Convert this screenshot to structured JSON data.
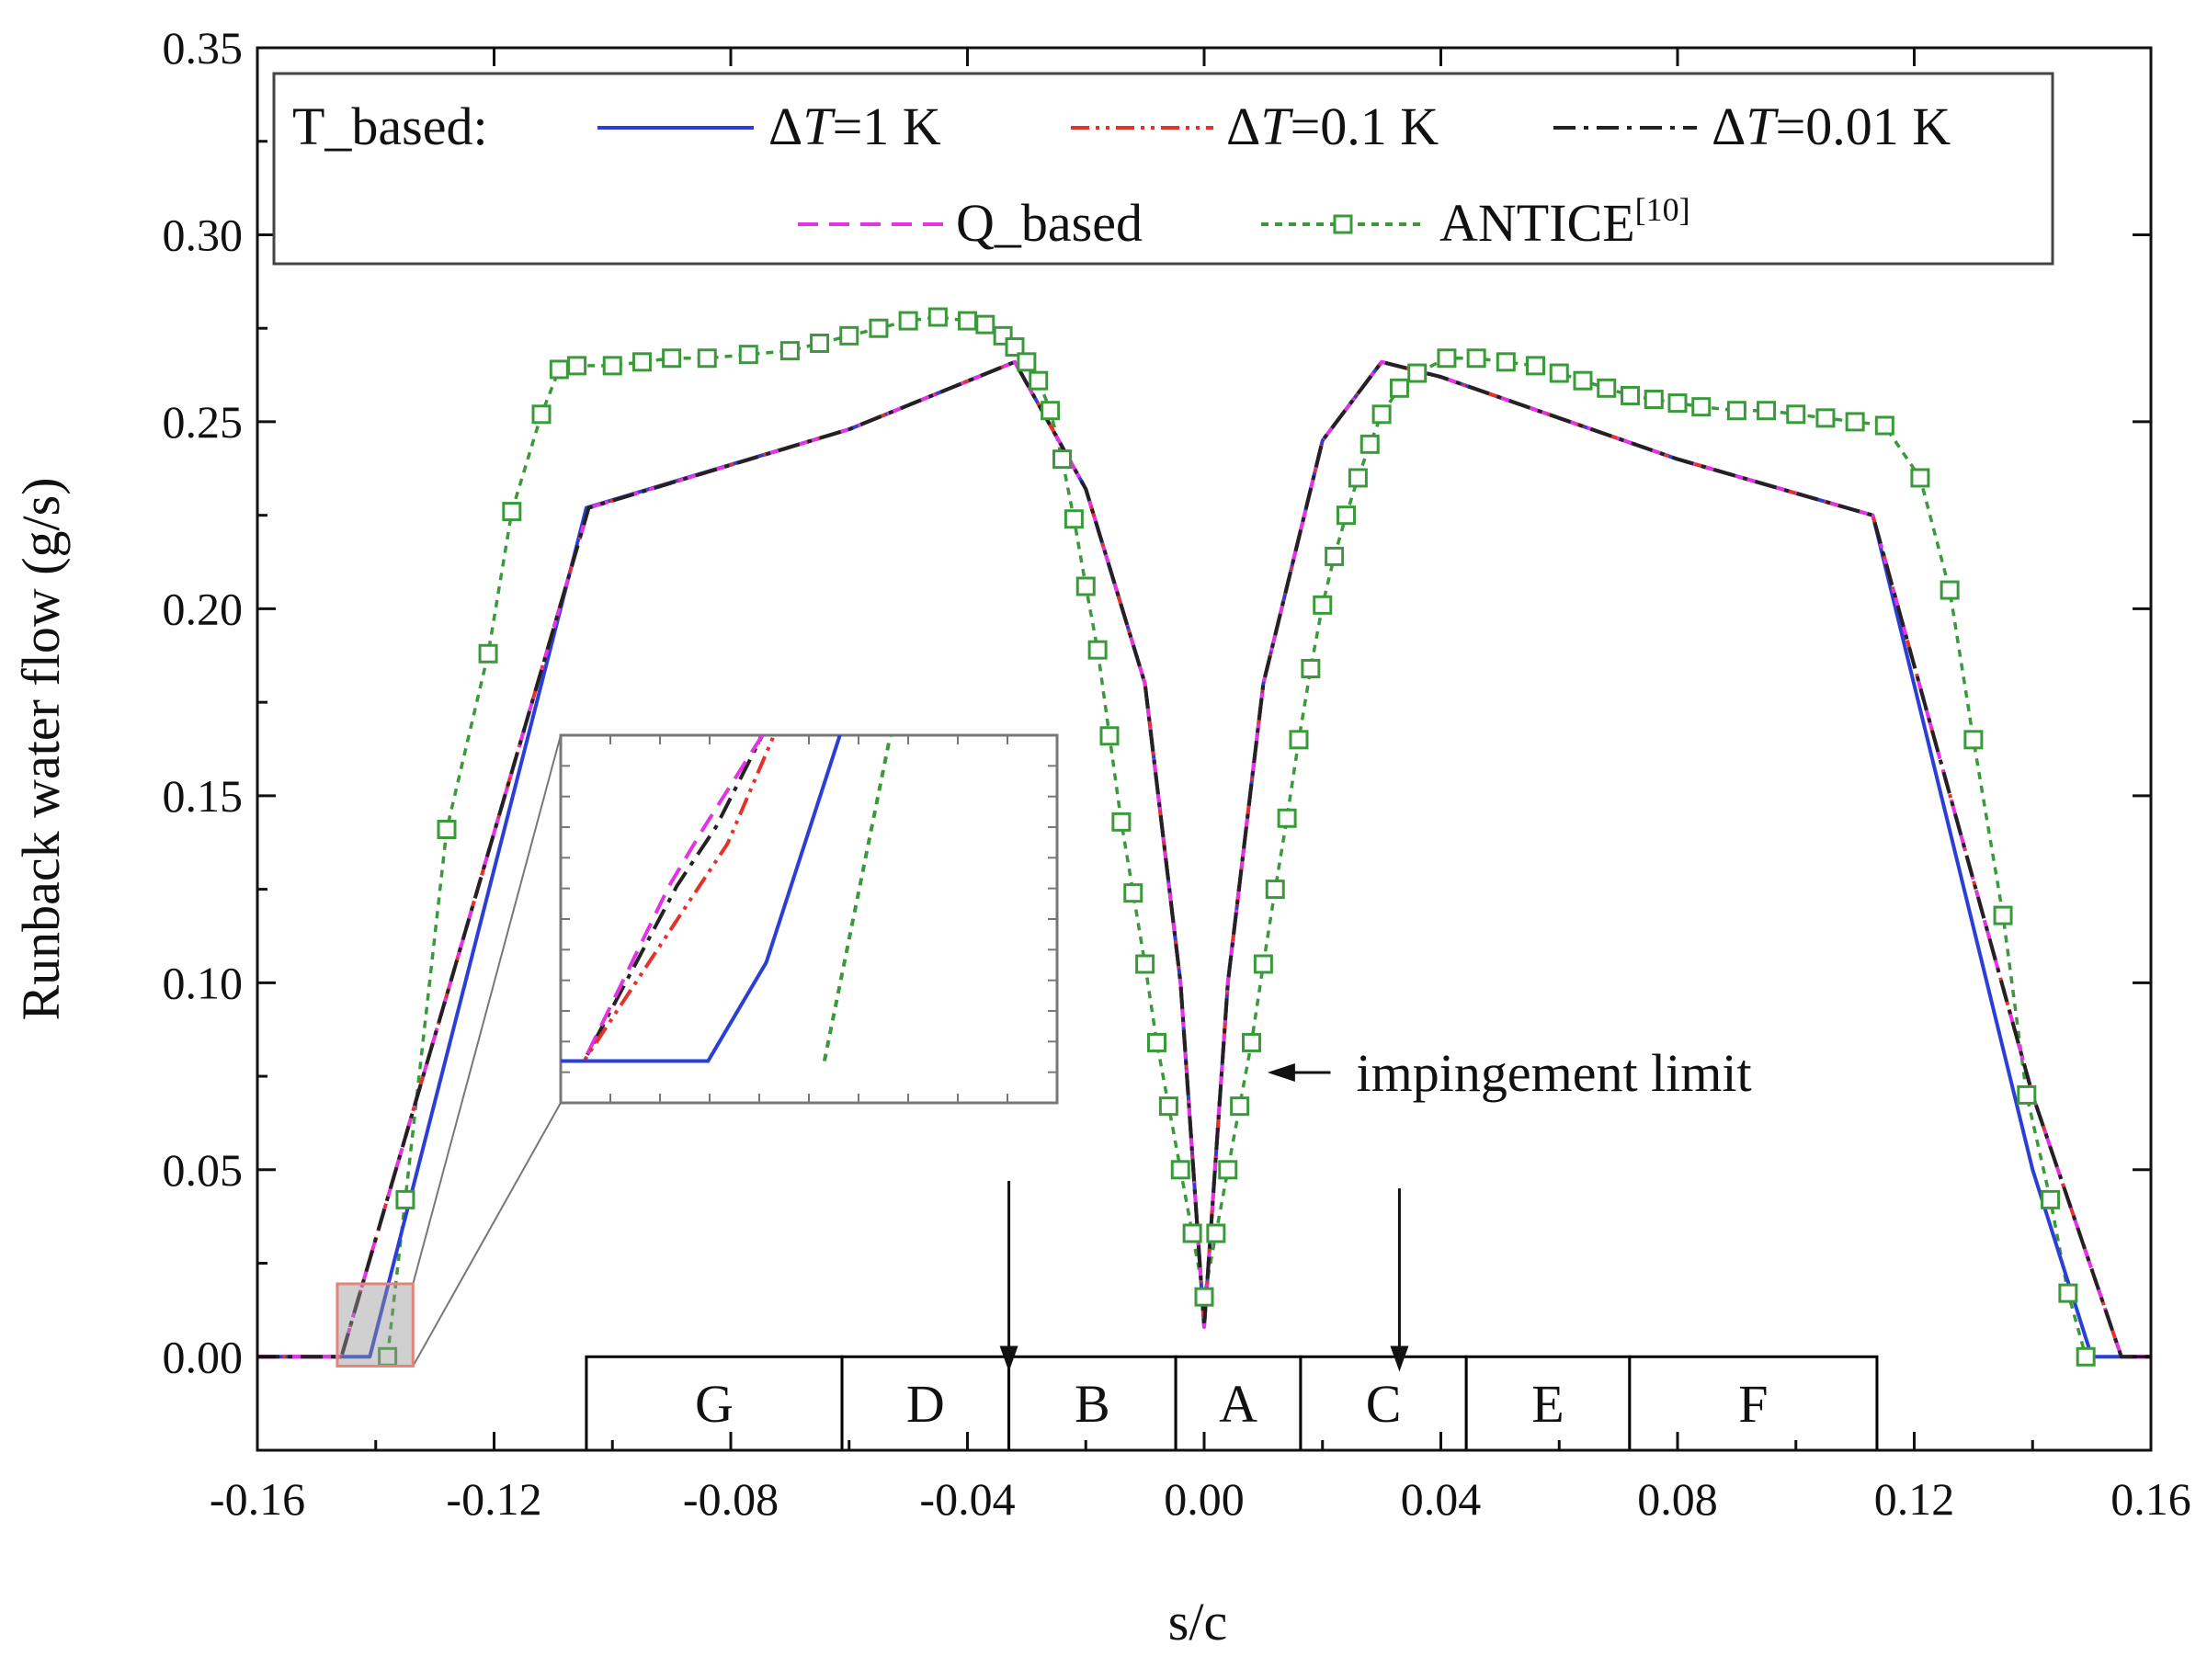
{
  "chart_data": {
    "type": "line",
    "title": "",
    "xlabel": "s/c",
    "ylabel": "Runback water flow (g/s)",
    "xlim": [
      -0.16,
      0.16
    ],
    "ylim": [
      -0.025,
      0.35
    ],
    "x_ticks": [
      "-0.16",
      "-0.12",
      "-0.08",
      "-0.04",
      "0.00",
      "0.04",
      "0.08",
      "0.12",
      "0.16"
    ],
    "x_tick_values": [
      -0.16,
      -0.12,
      -0.08,
      -0.04,
      0.0,
      0.04,
      0.08,
      0.12,
      0.16
    ],
    "y_ticks": [
      "0.00",
      "0.05",
      "0.10",
      "0.15",
      "0.20",
      "0.25",
      "0.30",
      "0.35"
    ],
    "y_tick_values": [
      0.0,
      0.05,
      0.1,
      0.15,
      0.2,
      0.25,
      0.3,
      0.35
    ],
    "grid": false,
    "legend": {
      "position": "top",
      "group_label": "T_based:",
      "entries": [
        {
          "prefix": "ΔT",
          "suffix": "=1 K",
          "series": "dT1"
        },
        {
          "prefix": "ΔT",
          "suffix": "=0.1 K",
          "series": "dT01"
        },
        {
          "prefix": "ΔT",
          "suffix": "=0.01 K",
          "series": "dT001"
        },
        {
          "prefix": "",
          "suffix": "Q_based",
          "series": "q"
        },
        {
          "prefix": "",
          "suffix": "ANTICE",
          "sup": "[10]",
          "series": "antice"
        }
      ]
    },
    "series": [
      {
        "id": "dT1",
        "name": "T_based ΔT=1 K",
        "color": "#2b3fd6",
        "style": "solid",
        "x": [
          -0.16,
          -0.144,
          -0.141,
          -0.1044,
          -0.06,
          -0.032,
          -0.02,
          -0.01,
          -0.004,
          0.0,
          0.004,
          0.01,
          0.02,
          0.03,
          0.04,
          0.08,
          0.113,
          0.14,
          0.15,
          0.16
        ],
        "y": [
          0.0,
          0.0,
          0.0,
          0.227,
          0.248,
          0.266,
          0.232,
          0.18,
          0.1,
          0.008,
          0.1,
          0.18,
          0.245,
          0.266,
          0.262,
          0.24,
          0.225,
          0.05,
          0.0,
          0.0
        ]
      },
      {
        "id": "dT01",
        "name": "T_based ΔT=0.1 K",
        "color": "#e8302a",
        "style": "dash-dot-dot",
        "x": [
          -0.16,
          -0.1458,
          -0.104,
          -0.06,
          -0.032,
          -0.02,
          -0.01,
          -0.004,
          0.0,
          0.004,
          0.01,
          0.02,
          0.03,
          0.04,
          0.08,
          0.113,
          0.14,
          0.155,
          0.16
        ],
        "y": [
          0.0,
          0.0,
          0.227,
          0.248,
          0.266,
          0.232,
          0.18,
          0.1,
          0.008,
          0.1,
          0.18,
          0.245,
          0.266,
          0.262,
          0.24,
          0.225,
          0.07,
          0.0,
          0.0
        ]
      },
      {
        "id": "dT001",
        "name": "T_based ΔT=0.01 K",
        "color": "#222222",
        "style": "dash-dot",
        "x": [
          -0.16,
          -0.1458,
          -0.104,
          -0.06,
          -0.032,
          -0.02,
          -0.01,
          -0.004,
          0.0,
          0.004,
          0.01,
          0.02,
          0.03,
          0.04,
          0.08,
          0.113,
          0.14,
          0.155,
          0.16
        ],
        "y": [
          0.0,
          0.0,
          0.227,
          0.248,
          0.266,
          0.232,
          0.18,
          0.1,
          0.008,
          0.1,
          0.18,
          0.245,
          0.266,
          0.262,
          0.24,
          0.225,
          0.07,
          0.0,
          0.0
        ]
      },
      {
        "id": "q",
        "name": "Q_based",
        "color": "#e632e6",
        "style": "dashed",
        "x": [
          -0.16,
          -0.1458,
          -0.104,
          -0.06,
          -0.032,
          -0.02,
          -0.01,
          -0.004,
          0.0,
          0.004,
          0.01,
          0.02,
          0.03,
          0.04,
          0.08,
          0.113,
          0.14,
          0.155,
          0.16
        ],
        "y": [
          0.0,
          0.0,
          0.227,
          0.248,
          0.266,
          0.232,
          0.18,
          0.1,
          0.008,
          0.1,
          0.18,
          0.245,
          0.266,
          0.262,
          0.24,
          0.225,
          0.07,
          0.0,
          0.0
        ]
      },
      {
        "id": "antice",
        "name": "ANTICE[10]",
        "color": "#3a9a3a",
        "style": "dotted",
        "marker": "open-square",
        "x": [
          -0.138,
          -0.135,
          -0.128,
          -0.121,
          -0.117,
          -0.112,
          -0.109,
          -0.106,
          -0.1,
          -0.095,
          -0.09,
          -0.084,
          -0.077,
          -0.07,
          -0.065,
          -0.06,
          -0.055,
          -0.05,
          -0.045,
          -0.04,
          -0.037,
          -0.034,
          -0.032,
          -0.03,
          -0.028,
          -0.026,
          -0.024,
          -0.022,
          -0.02,
          -0.018,
          -0.016,
          -0.014,
          -0.012,
          -0.01,
          -0.008,
          -0.006,
          -0.004,
          -0.002,
          0.0,
          0.002,
          0.004,
          0.006,
          0.008,
          0.01,
          0.012,
          0.014,
          0.016,
          0.018,
          0.02,
          0.022,
          0.024,
          0.026,
          0.028,
          0.03,
          0.033,
          0.036,
          0.041,
          0.046,
          0.051,
          0.056,
          0.06,
          0.064,
          0.068,
          0.072,
          0.076,
          0.08,
          0.084,
          0.09,
          0.095,
          0.1,
          0.105,
          0.11,
          0.115,
          0.121,
          0.126,
          0.13,
          0.135,
          0.139,
          0.143,
          0.146,
          0.149
        ],
        "y": [
          0.0,
          0.042,
          0.141,
          0.188,
          0.226,
          0.252,
          0.264,
          0.265,
          0.265,
          0.266,
          0.267,
          0.267,
          0.268,
          0.269,
          0.271,
          0.273,
          0.275,
          0.277,
          0.278,
          0.277,
          0.276,
          0.273,
          0.27,
          0.266,
          0.261,
          0.253,
          0.24,
          0.224,
          0.206,
          0.189,
          0.166,
          0.143,
          0.124,
          0.105,
          0.084,
          0.067,
          0.05,
          0.033,
          0.016,
          0.033,
          0.05,
          0.067,
          0.084,
          0.105,
          0.125,
          0.144,
          0.165,
          0.184,
          0.201,
          0.214,
          0.225,
          0.235,
          0.244,
          0.252,
          0.259,
          0.263,
          0.267,
          0.267,
          0.266,
          0.265,
          0.263,
          0.261,
          0.259,
          0.257,
          0.256,
          0.255,
          0.254,
          0.253,
          0.253,
          0.252,
          0.251,
          0.25,
          0.249,
          0.235,
          0.205,
          0.165,
          0.118,
          0.07,
          0.042,
          0.017,
          0.0
        ]
      }
    ],
    "regions": [
      {
        "label": "G",
        "from": -0.1044,
        "to": -0.0612
      },
      {
        "label": "D",
        "from": -0.0612,
        "to": -0.033
      },
      {
        "label": "B",
        "from": -0.033,
        "to": -0.0048
      },
      {
        "label": "A",
        "from": -0.0048,
        "to": 0.0163
      },
      {
        "label": "C",
        "from": 0.0163,
        "to": 0.0443
      },
      {
        "label": "E",
        "from": 0.0443,
        "to": 0.0719
      },
      {
        "label": "F",
        "from": 0.0719,
        "to": 0.1137
      }
    ],
    "region_band": [
      0.0,
      -0.025
    ],
    "annotations": [
      {
        "text": "impingement limit",
        "arrow_to": [
          0.0107,
          0.076
        ],
        "text_at": [
          0.04,
          0.076
        ]
      }
    ],
    "impingement_arrows": [
      {
        "x": -0.033,
        "y_from": 0.047,
        "y_to": -0.004
      },
      {
        "x": 0.033,
        "y_from": 0.045,
        "y_to": -0.004
      }
    ],
    "inset": {
      "source_region": {
        "x": [
          -0.1465,
          -0.1337
        ],
        "y": [
          -0.0025,
          0.0195
        ]
      },
      "series": [
        {
          "series": "dT001",
          "color": "#222222",
          "style": "dash-dot",
          "x": [
            -0.1465,
            -0.1459,
            -0.1435,
            -0.1425,
            -0.1413
          ],
          "y": [
            0.0,
            0.0,
            0.0105,
            0.014,
            0.0195
          ]
        },
        {
          "series": "q",
          "color": "#e632e6",
          "style": "dashed",
          "x": [
            -0.1465,
            -0.1459,
            -0.1437,
            -0.1428,
            -0.1413
          ],
          "y": [
            0.0,
            0.0,
            0.0105,
            0.014,
            0.0195
          ]
        },
        {
          "series": "dT01",
          "color": "#e8302a",
          "style": "dash-dot-dot",
          "x": [
            -0.1465,
            -0.1459,
            -0.1432,
            -0.1422,
            -0.141
          ],
          "y": [
            0.0,
            0.0,
            0.0095,
            0.013,
            0.0195
          ]
        },
        {
          "series": "dT1",
          "color": "#2b3fd6",
          "style": "solid",
          "x": [
            -0.1465,
            -0.1427,
            -0.1412,
            -0.1393
          ],
          "y": [
            0.0,
            0.0,
            0.0059,
            0.0195
          ]
        },
        {
          "series": "antice",
          "color": "#3a9a3a",
          "style": "dotted",
          "x": [
            -0.1397,
            -0.138
          ],
          "y": [
            0.0,
            0.0195
          ]
        }
      ]
    }
  }
}
